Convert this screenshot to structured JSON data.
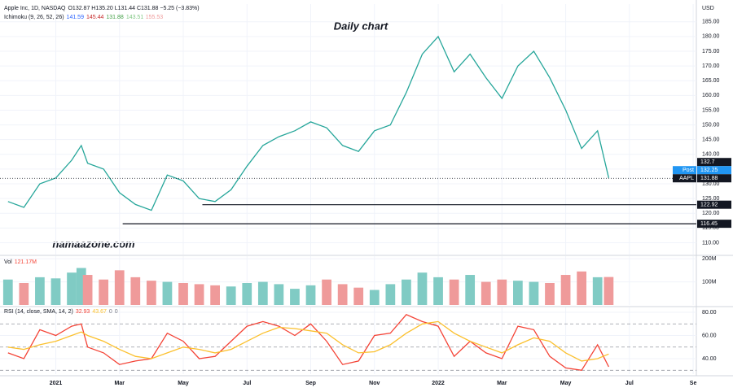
{
  "chart_data": [
    {
      "type": "line",
      "symbol": "Apple Inc, 1D, NASDAQ",
      "ohlc": "O132.87 H135.20 L131.44 C131.88 −5.25 (−3.83%)",
      "indicator": "Ichimoku (9, 26, 52, 26)",
      "indicator_values": [
        {
          "text": "141.59",
          "color": "#2962ff"
        },
        {
          "text": "145.44",
          "color": "#c62828"
        },
        {
          "text": "131.88",
          "color": "#43a047"
        },
        {
          "text": "143.51",
          "color": "#81c784"
        },
        {
          "text": "155.53",
          "color": "#ef9a9a"
        }
      ],
      "title": "Daily chart",
      "watermark": "namaazone.com",
      "currency": "USD",
      "x": [
        -1.5,
        -1.0,
        -0.5,
        0,
        0.5,
        0.8,
        1.0,
        1.5,
        2.0,
        2.5,
        3.0,
        3.5,
        4.0,
        4.5,
        5.0,
        5.5,
        6.0,
        6.5,
        7.0,
        7.5,
        8.0,
        8.5,
        9.0,
        9.5,
        10.0,
        10.5,
        11.0,
        11.5,
        12.0,
        12.5,
        13.0,
        13.5,
        14.0,
        14.5,
        15.0,
        15.5,
        16.0,
        16.5,
        17.0,
        17.35
      ],
      "values": [
        124,
        122,
        130,
        132,
        138,
        143,
        137,
        135,
        127,
        123,
        121,
        133,
        131,
        125,
        124,
        128,
        136,
        143,
        146,
        148,
        151,
        149,
        143,
        141,
        148,
        150,
        161,
        174,
        180,
        168,
        174,
        166,
        159,
        170,
        175,
        166,
        155,
        142,
        148,
        132
      ],
      "color": "#26a69a",
      "xlim": [
        -1.75,
        20.1
      ],
      "xticks": [
        {
          "value": 0,
          "label": "2021"
        },
        {
          "value": 2,
          "label": "Mar"
        },
        {
          "value": 4,
          "label": "May"
        },
        {
          "value": 6,
          "label": "Jul"
        },
        {
          "value": 8,
          "label": "Sep"
        },
        {
          "value": 10,
          "label": "Nov"
        },
        {
          "value": 12,
          "label": "2022"
        },
        {
          "value": 14,
          "label": "Mar"
        },
        {
          "value": 16,
          "label": "May"
        },
        {
          "value": 18,
          "label": "Jul"
        },
        {
          "value": 20,
          "label": "Se"
        }
      ],
      "ylim": [
        106,
        191
      ],
      "yticks": [
        {
          "value": 110,
          "label": "110.00"
        },
        {
          "value": 115,
          "label": "115.00"
        },
        {
          "value": 120,
          "label": "120.00"
        },
        {
          "value": 125,
          "label": "125.00"
        },
        {
          "value": 130,
          "label": "130.00"
        },
        {
          "value": 135,
          "label": "135.00"
        },
        {
          "value": 140,
          "label": "140.00"
        },
        {
          "value": 145,
          "label": "145.00"
        },
        {
          "value": 150,
          "label": "150.00"
        },
        {
          "value": 155,
          "label": "155.00"
        },
        {
          "value": 160,
          "label": "160.00"
        },
        {
          "value": 165,
          "label": "165.00"
        },
        {
          "value": 170,
          "label": "170.00"
        },
        {
          "value": 175,
          "label": "175.00"
        },
        {
          "value": 180,
          "label": "180.00"
        },
        {
          "value": 185,
          "label": "185.00"
        }
      ],
      "levels": [
        122.92,
        116.45
      ],
      "level_starts": [
        4.6,
        2.1
      ],
      "price_tags": [
        {
          "value": 132.7,
          "color": "#131722"
        },
        {
          "name": "Post",
          "value": 132.25,
          "color": "#2196f3"
        },
        {
          "name": "AAPL",
          "value": 131.88,
          "color": "#131722"
        }
      ],
      "grid": true
    },
    {
      "type": "bar",
      "label": "Vol",
      "current": "121.17M",
      "values": [
        110,
        95,
        120,
        115,
        140,
        160,
        130,
        110,
        150,
        120,
        105,
        100,
        95,
        90,
        85,
        80,
        95,
        100,
        90,
        70,
        85,
        110,
        90,
        75,
        65,
        90,
        110,
        140,
        120,
        110,
        130,
        100,
        110,
        105,
        100,
        95,
        130,
        145,
        120,
        121
      ],
      "up_color": "#80cbc4",
      "down_color": "#ef9a9a",
      "ylim": [
        0,
        211
      ],
      "yticks": [
        {
          "value": 100,
          "label": "100M"
        },
        {
          "value": 200,
          "label": "200M"
        }
      ]
    },
    {
      "type": "line",
      "indicator": "RSI (14, close, SMA, 14, 2)",
      "indicator_values": [
        {
          "text": "32.93",
          "color": "#f44336"
        },
        {
          "text": "43.67",
          "color": "#fbc02d"
        },
        {
          "text": "0",
          "color": "#787b86"
        },
        {
          "text": "0",
          "color": "#787b86"
        }
      ],
      "series": [
        {
          "color": "#f44336",
          "values": [
            45,
            40,
            65,
            60,
            68,
            70,
            50,
            45,
            35,
            38,
            40,
            62,
            55,
            40,
            42,
            55,
            68,
            72,
            68,
            60,
            70,
            55,
            35,
            38,
            60,
            62,
            78,
            72,
            68,
            42,
            55,
            45,
            40,
            68,
            65,
            42,
            32,
            30,
            52,
            33
          ]
        },
        {
          "color": "#fbc02d",
          "values": [
            50,
            48,
            52,
            55,
            60,
            63,
            60,
            55,
            48,
            42,
            40,
            45,
            50,
            48,
            45,
            48,
            55,
            62,
            67,
            66,
            64,
            62,
            52,
            45,
            46,
            52,
            62,
            70,
            72,
            62,
            55,
            50,
            45,
            52,
            58,
            55,
            45,
            38,
            40,
            44
          ]
        }
      ],
      "bands": [
        30,
        50,
        70
      ],
      "ylim": [
        26.7,
        84.2
      ],
      "yticks": [
        {
          "value": 40,
          "label": "40.00"
        },
        {
          "value": 60,
          "label": "60.00"
        },
        {
          "value": 80,
          "label": "80.00"
        }
      ]
    }
  ]
}
